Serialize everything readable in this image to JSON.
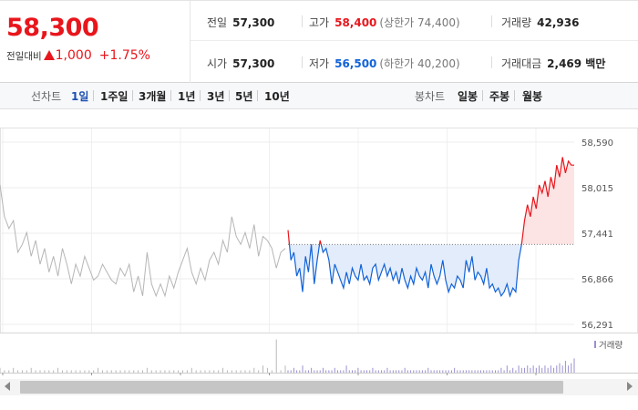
{
  "quote": {
    "price": "58,300",
    "change_label": "전일대비",
    "change_value": "1,000",
    "change_pct": "+1.75%"
  },
  "stats": {
    "prev_close": {
      "label": "전일",
      "value": "57,300"
    },
    "high": {
      "label": "고가",
      "value": "58,400",
      "sub": "(상한가 74,400)"
    },
    "volume": {
      "label": "거래량",
      "value": "42,936"
    },
    "open": {
      "label": "시가",
      "value": "57,300"
    },
    "low": {
      "label": "저가",
      "value": "56,500",
      "sub": "(하한가 40,200)"
    },
    "amount": {
      "label": "거래대금",
      "value": "2,469 백만"
    }
  },
  "tabs": {
    "line_label": "선차트",
    "line_periods": [
      "1일",
      "1주일",
      "3개월",
      "1년",
      "3년",
      "5년",
      "10년"
    ],
    "active_period": "1일",
    "candle_label": "봉차트",
    "candle_periods": [
      "일봉",
      "주봉",
      "월봉"
    ]
  },
  "colors": {
    "up": "#e8161c",
    "down": "#1162d8",
    "up_fill": "#fde4e4",
    "down_fill": "#e3ecfa",
    "prev_day_line": "#b5b5b5",
    "volume": "#9b8fd0"
  },
  "chart_data": {
    "type": "line",
    "y_ticks": [
      "58,590",
      "58,015",
      "57,441",
      "56,866",
      "56,291"
    ],
    "ylim": [
      56291,
      58590
    ],
    "base_price": 57300,
    "volume_legend": "거래량",
    "grid": true,
    "prev_day_series": {
      "values": [
        58050,
        57650,
        57500,
        57600,
        57200,
        57300,
        57450,
        57150,
        57350,
        57050,
        57250,
        56950,
        57150,
        56900,
        57250,
        57050,
        56800,
        57050,
        56900,
        57150,
        57000,
        56850,
        56900,
        57050,
        56950,
        56850,
        56800,
        57000,
        56900,
        57050,
        56700,
        56900,
        56650,
        57200,
        56800,
        56650,
        56800,
        56650,
        56900,
        56750,
        56950,
        57100,
        57250,
        56950,
        56800,
        57000,
        56850,
        57100,
        57200,
        57050,
        57350,
        57200,
        57650,
        57400,
        57300,
        57450,
        57250,
        57550,
        57150,
        57400,
        57350,
        57250,
        57000,
        57200,
        57250
      ]
    },
    "today_series": {
      "values": [
        57480,
        57100,
        57200,
        56900,
        57000,
        56700,
        57150,
        56950,
        57300,
        56800,
        57100,
        57350,
        57200,
        57250,
        57100,
        56800,
        57050,
        56950,
        56850,
        56750,
        56950,
        56800,
        57000,
        56900,
        56850,
        57050,
        56850,
        56900,
        56800,
        57000,
        57050,
        56850,
        56950,
        57050,
        56900,
        57000,
        56850,
        56950,
        56800,
        57000,
        56850,
        56750,
        56900,
        56800,
        57000,
        56900,
        56850,
        56950,
        56750,
        57050,
        56900,
        56800,
        56900,
        57100,
        56850,
        56700,
        56800,
        56750,
        56900,
        56850,
        56750,
        57100,
        56950,
        57150,
        56850,
        56950,
        56900,
        56800,
        57000,
        56750,
        56800,
        56700,
        56750,
        56650,
        56700,
        56800,
        56650,
        56750,
        56700,
        57100,
        57300,
        57600,
        57800,
        57650,
        57900,
        57750,
        58050,
        57950,
        58100,
        57900,
        58150,
        58000,
        58300,
        58150,
        58400,
        58200,
        58350,
        58300,
        58300
      ],
      "volume": [
        1,
        1,
        2,
        1,
        1,
        3,
        1,
        1,
        2,
        1,
        1,
        1,
        2,
        1,
        1,
        1,
        2,
        1,
        1,
        1,
        3,
        1,
        1,
        1,
        2,
        1,
        1,
        1,
        1,
        2,
        1,
        1,
        1,
        1,
        2,
        1,
        1,
        1,
        1,
        1,
        2,
        1,
        1,
        1,
        1,
        1,
        1,
        1,
        2,
        1,
        1,
        1,
        1,
        1,
        1,
        1,
        1,
        2,
        1,
        1,
        1,
        1,
        1,
        1,
        1,
        1,
        1,
        1,
        1,
        1,
        1,
        1,
        1,
        2,
        1,
        3,
        1,
        2,
        1,
        3,
        2,
        2,
        3,
        2,
        3,
        2,
        3,
        2,
        3,
        2,
        3,
        2,
        3,
        4,
        3,
        5,
        3,
        4,
        6
      ]
    },
    "prev_volume": [
      2,
      1,
      1,
      2,
      1,
      1,
      1,
      2,
      1,
      1,
      1,
      1,
      1,
      2,
      1,
      1,
      1,
      1,
      1,
      1,
      1,
      1,
      2,
      1,
      1,
      1,
      1,
      1,
      1,
      1,
      1,
      1,
      1,
      2,
      1,
      1,
      1,
      1,
      1,
      1,
      1,
      1,
      1,
      2,
      1,
      1,
      1,
      1,
      1,
      1,
      2,
      1,
      1,
      1,
      1,
      1,
      1,
      2,
      1,
      3,
      2,
      1,
      14,
      1,
      3
    ]
  }
}
